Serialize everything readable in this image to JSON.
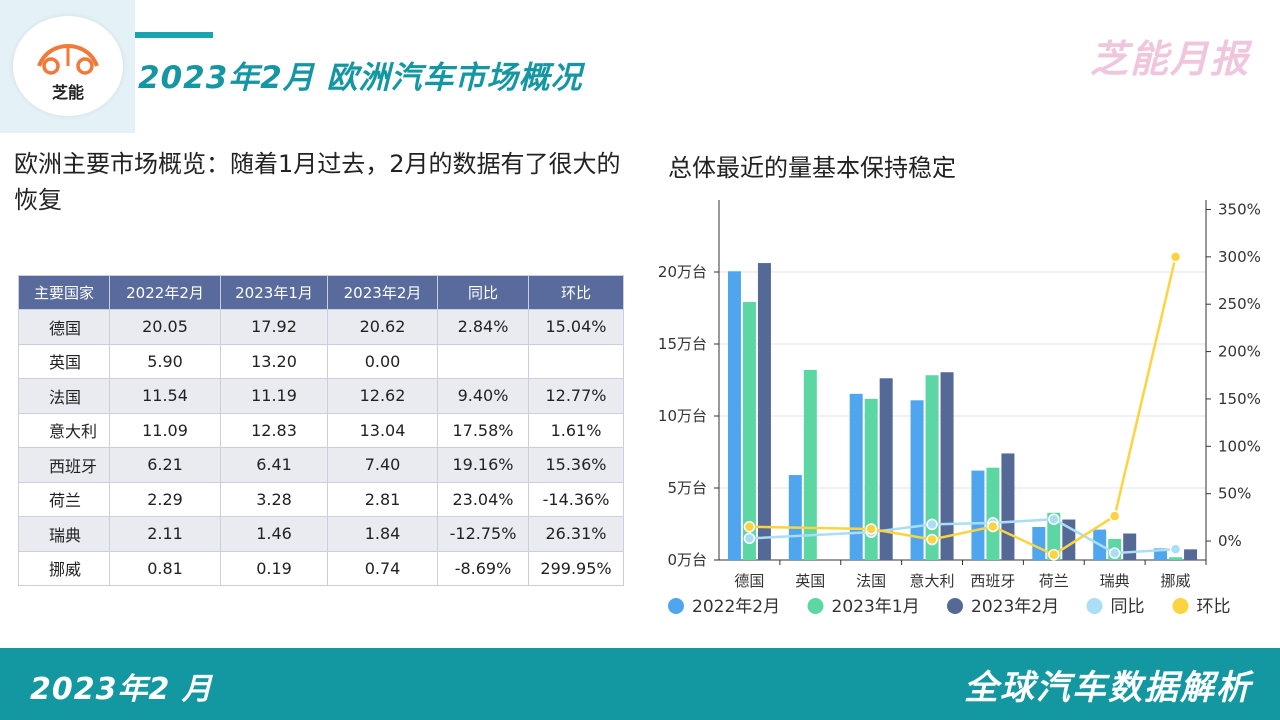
{
  "header": {
    "logo_text": "芝能",
    "title": "2023年2月 欧洲汽车市场概况",
    "brand": "芝能月报"
  },
  "intro_text": "欧洲主要市场概览：随着1月过去，2月的数据有了很大的恢复",
  "table": {
    "headers": [
      "主要国家",
      "2022年2月",
      "2023年1月",
      "2023年2月",
      "同比",
      "环比"
    ],
    "rows": [
      [
        "德国",
        "20.05",
        "17.92",
        "20.62",
        "2.84%",
        "15.04%"
      ],
      [
        "英国",
        "5.90",
        "13.20",
        "0.00",
        "",
        ""
      ],
      [
        "法国",
        "11.54",
        "11.19",
        "12.62",
        "9.40%",
        "12.77%"
      ],
      [
        "意大利",
        "11.09",
        "12.83",
        "13.04",
        "17.58%",
        "1.61%"
      ],
      [
        "西班牙",
        "6.21",
        "6.41",
        "7.40",
        "19.16%",
        "15.36%"
      ],
      [
        "荷兰",
        "2.29",
        "3.28",
        "2.81",
        "23.04%",
        "-14.36%"
      ],
      [
        "瑞典",
        "2.11",
        "1.46",
        "1.84",
        "-12.75%",
        "26.31%"
      ],
      [
        "挪威",
        "0.81",
        "0.19",
        "0.74",
        "-8.69%",
        "299.95%"
      ]
    ]
  },
  "chart_title": "总体最近的量基本保持稳定",
  "chart_data": {
    "type": "bar",
    "categories": [
      "德国",
      "英国",
      "法国",
      "意大利",
      "西班牙",
      "荷兰",
      "瑞典",
      "挪威"
    ],
    "series": [
      {
        "name": "2022年2月",
        "type": "bar",
        "axis": "left",
        "color": "#4fa6ef",
        "values": [
          20.05,
          5.9,
          11.54,
          11.09,
          6.21,
          2.29,
          2.11,
          0.81
        ]
      },
      {
        "name": "2023年1月",
        "type": "bar",
        "axis": "left",
        "color": "#5cd6a2",
        "values": [
          17.92,
          13.2,
          11.19,
          12.83,
          6.41,
          3.28,
          1.46,
          0.19
        ]
      },
      {
        "name": "2023年2月",
        "type": "bar",
        "axis": "left",
        "color": "#556997",
        "values": [
          20.62,
          0.0,
          12.62,
          13.04,
          7.4,
          2.81,
          1.84,
          0.74
        ]
      },
      {
        "name": "同比",
        "type": "line",
        "axis": "right",
        "color": "#a9def5",
        "values": [
          2.84,
          null,
          9.4,
          17.58,
          19.16,
          23.04,
          -12.75,
          -8.69
        ]
      },
      {
        "name": "环比",
        "type": "line",
        "axis": "right",
        "color": "#fbd43f",
        "values": [
          15.04,
          null,
          12.77,
          1.61,
          15.36,
          -14.36,
          26.31,
          299.95
        ]
      }
    ],
    "left_axis": {
      "min": 0,
      "max": 25,
      "ticks": [
        0,
        5,
        10,
        15,
        20
      ],
      "tick_labels": [
        "0万台",
        "5万台",
        "10万台",
        "15万台",
        "20万台"
      ]
    },
    "right_axis": {
      "min": -20,
      "max": 360,
      "ticks": [
        0,
        50,
        100,
        150,
        200,
        250,
        300,
        350
      ],
      "tick_labels": [
        "0%",
        "50%",
        "100%",
        "150%",
        "200%",
        "250%",
        "300%",
        "350%"
      ]
    },
    "grid": true,
    "legend_position": "bottom"
  },
  "footer": {
    "date": "2023年2 月",
    "slogan": "全球汽车数据解析"
  }
}
